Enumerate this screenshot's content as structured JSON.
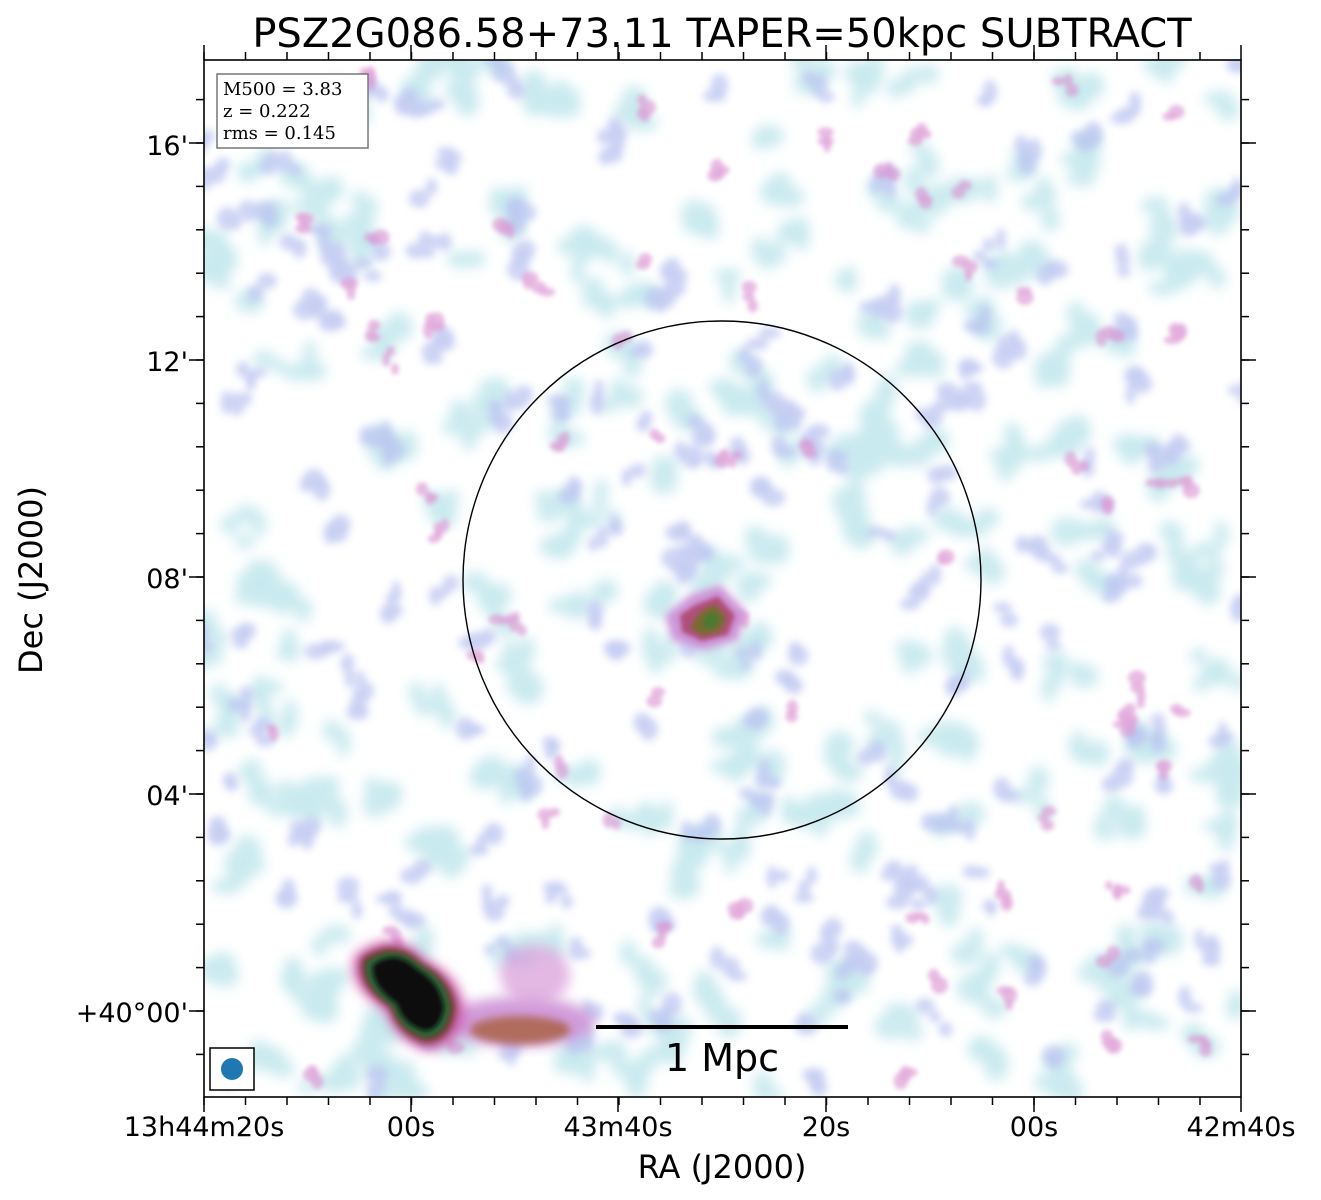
{
  "title": "PSZ2G086.58+73.11 TAPER=50kpc SUBTRACT",
  "axes": {
    "xlabel": "RA (J2000)",
    "ylabel": "Dec (J2000)",
    "x_ticks": [
      "13h44m20s",
      "00s",
      "43m40s",
      "20s",
      "00s",
      "42m40s"
    ],
    "y_ticks": [
      "16'",
      "12'",
      "08'",
      "04'",
      "+40°00'"
    ]
  },
  "info_box": {
    "m500": "M500 = 3.83",
    "z": "z = 0.222",
    "rms": "rms = 0.145"
  },
  "scale_bar": {
    "label": "1 Mpc"
  },
  "colors": {
    "beam": "#1f77b4",
    "noise_light": "#bfe6ec",
    "noise_mid": "#b9c2f0",
    "noise_high": "#d98fd0",
    "source_mid": "#8a5a3a",
    "source_core": "#2e6a2e",
    "source_peak": "#0a0a0a"
  }
}
